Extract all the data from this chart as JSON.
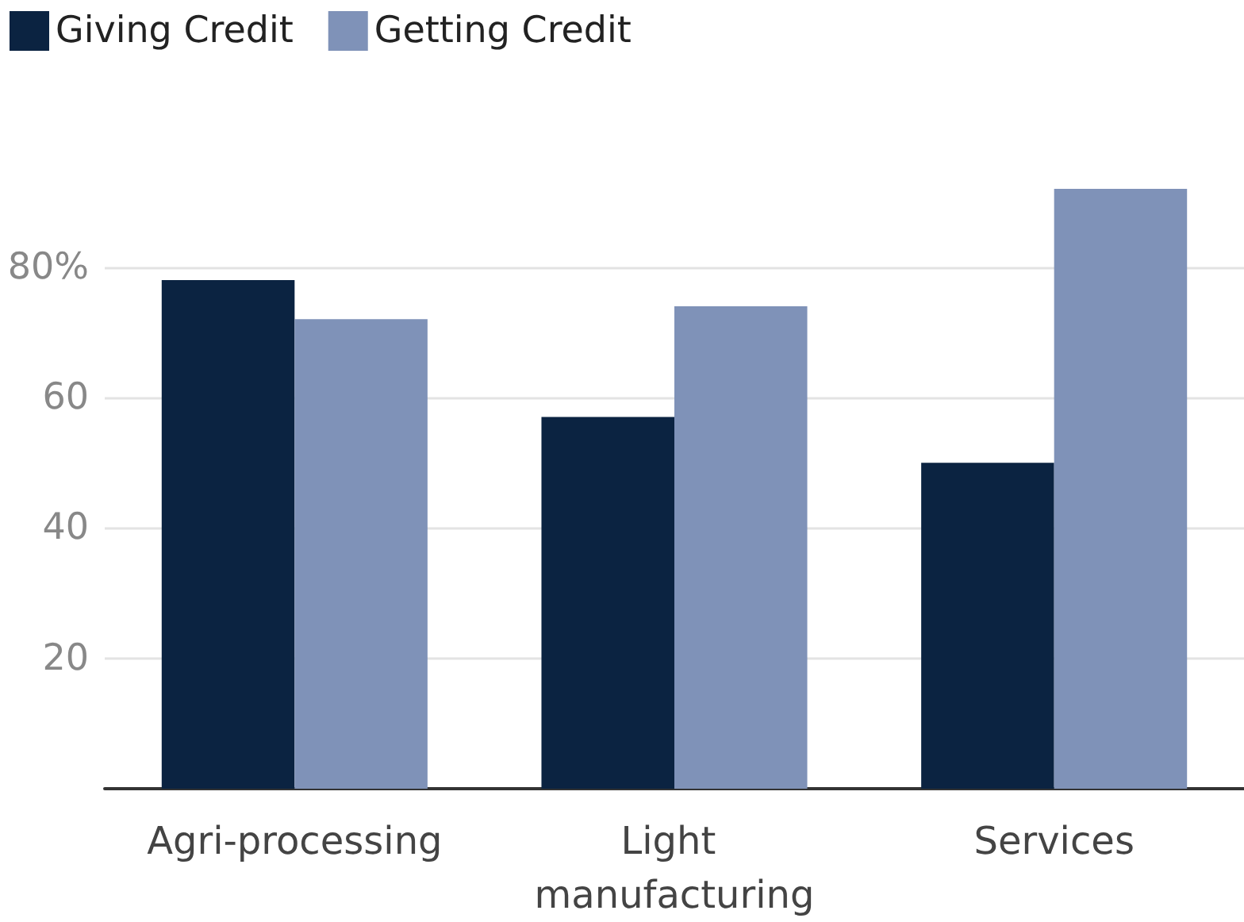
{
  "chart_data": {
    "type": "bar",
    "categories": [
      "Agri-processing",
      "Light manufacturing",
      "Services"
    ],
    "series": [
      {
        "name": "Giving Credit",
        "color": "#0b2341",
        "values": [
          78,
          57,
          50
        ]
      },
      {
        "name": "Getting Credit",
        "color": "#7f92b8",
        "values": [
          72,
          74,
          92
        ]
      }
    ],
    "ylim": [
      0,
      92
    ],
    "yticks": [
      20,
      40,
      60,
      {
        "value": 80,
        "label": "80%"
      }
    ],
    "grid": "y",
    "legend": "top left"
  }
}
